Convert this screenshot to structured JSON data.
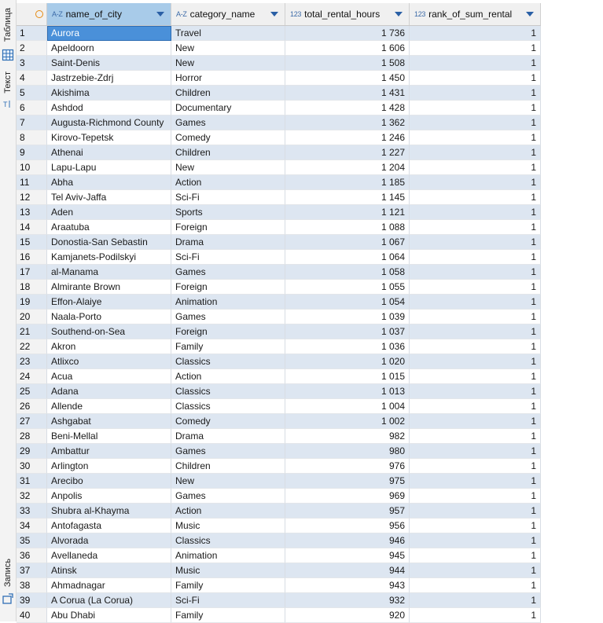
{
  "side_tabs": {
    "table": "Таблица",
    "text": "Текст",
    "record": "Запись"
  },
  "icons": [
    "grid-icon",
    "text-mode-icon",
    "record-icon",
    "sort-circle-icon",
    "dropdown-arrow-icon"
  ],
  "columns": [
    {
      "type": "A-Z",
      "name": "name_of_city"
    },
    {
      "type": "A-Z",
      "name": "category_name"
    },
    {
      "type": "123",
      "name": "total_rental_hours"
    },
    {
      "type": "123",
      "name": "rank_of_sum_rental"
    }
  ],
  "rows": [
    [
      "1",
      "Aurora",
      "Travel",
      "1 736",
      "1"
    ],
    [
      "2",
      "Apeldoorn",
      "New",
      "1 606",
      "1"
    ],
    [
      "3",
      "Saint-Denis",
      "New",
      "1 508",
      "1"
    ],
    [
      "4",
      "Jastrzebie-Zdrj",
      "Horror",
      "1 450",
      "1"
    ],
    [
      "5",
      "Akishima",
      "Children",
      "1 431",
      "1"
    ],
    [
      "6",
      "Ashdod",
      "Documentary",
      "1 428",
      "1"
    ],
    [
      "7",
      "Augusta-Richmond County",
      "Games",
      "1 362",
      "1"
    ],
    [
      "8",
      "Kirovo-Tepetsk",
      "Comedy",
      "1 246",
      "1"
    ],
    [
      "9",
      "Athenai",
      "Children",
      "1 227",
      "1"
    ],
    [
      "10",
      "Lapu-Lapu",
      "New",
      "1 204",
      "1"
    ],
    [
      "11",
      "Abha",
      "Action",
      "1 185",
      "1"
    ],
    [
      "12",
      "Tel Aviv-Jaffa",
      "Sci-Fi",
      "1 145",
      "1"
    ],
    [
      "13",
      "Aden",
      "Sports",
      "1 121",
      "1"
    ],
    [
      "14",
      "Araatuba",
      "Foreign",
      "1 088",
      "1"
    ],
    [
      "15",
      "Donostia-San Sebastin",
      "Drama",
      "1 067",
      "1"
    ],
    [
      "16",
      "Kamjanets-Podilskyi",
      "Sci-Fi",
      "1 064",
      "1"
    ],
    [
      "17",
      "al-Manama",
      "Games",
      "1 058",
      "1"
    ],
    [
      "18",
      "Almirante Brown",
      "Foreign",
      "1 055",
      "1"
    ],
    [
      "19",
      "Effon-Alaiye",
      "Animation",
      "1 054",
      "1"
    ],
    [
      "20",
      "Naala-Porto",
      "Games",
      "1 039",
      "1"
    ],
    [
      "21",
      "Southend-on-Sea",
      "Foreign",
      "1 037",
      "1"
    ],
    [
      "22",
      "Akron",
      "Family",
      "1 036",
      "1"
    ],
    [
      "23",
      "Atlixco",
      "Classics",
      "1 020",
      "1"
    ],
    [
      "24",
      "Acua",
      "Action",
      "1 015",
      "1"
    ],
    [
      "25",
      "Adana",
      "Classics",
      "1 013",
      "1"
    ],
    [
      "26",
      "Allende",
      "Classics",
      "1 004",
      "1"
    ],
    [
      "27",
      "Ashgabat",
      "Comedy",
      "1 002",
      "1"
    ],
    [
      "28",
      "Beni-Mellal",
      "Drama",
      "982",
      "1"
    ],
    [
      "29",
      "Ambattur",
      "Games",
      "980",
      "1"
    ],
    [
      "30",
      "Arlington",
      "Children",
      "976",
      "1"
    ],
    [
      "31",
      "Arecibo",
      "New",
      "975",
      "1"
    ],
    [
      "32",
      "Anpolis",
      "Games",
      "969",
      "1"
    ],
    [
      "33",
      "Shubra al-Khayma",
      "Action",
      "957",
      "1"
    ],
    [
      "34",
      "Antofagasta",
      "Music",
      "956",
      "1"
    ],
    [
      "35",
      "Alvorada",
      "Classics",
      "946",
      "1"
    ],
    [
      "36",
      "Avellaneda",
      "Animation",
      "945",
      "1"
    ],
    [
      "37",
      "Atinsk",
      "Music",
      "944",
      "1"
    ],
    [
      "38",
      "Ahmadnagar",
      "Family",
      "943",
      "1"
    ],
    [
      "39",
      "A Corua (La Corua)",
      "Sci-Fi",
      "932",
      "1"
    ],
    [
      "40",
      "Abu Dhabi",
      "Family",
      "920",
      "1"
    ]
  ]
}
